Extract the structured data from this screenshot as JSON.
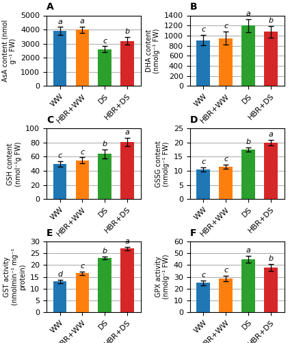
{
  "chart_data": [
    {
      "type": "bar",
      "title": "A",
      "ylabel": "AsA content (nmol g⁻¹ FW)",
      "categories": [
        "WW",
        "HBR+WW",
        "DS",
        "HBR+DS"
      ],
      "values": [
        3900,
        4000,
        2600,
        3200
      ],
      "errors": [
        280,
        220,
        220,
        280
      ],
      "annotations": [
        "a",
        "a",
        "c",
        "b"
      ],
      "colors": [
        "#1f77b4",
        "#ff7f0e",
        "#2ca02c",
        "#d62728"
      ],
      "ylim": [
        0,
        5000
      ],
      "yticks": [
        0,
        1000,
        2000,
        3000,
        4000,
        5000
      ],
      "grid": true
    },
    {
      "type": "bar",
      "title": "B",
      "ylabel": "DHA content (nmolg⁻¹ FW)",
      "categories": [
        "WW",
        "HBR+WW",
        "DS",
        "HBR+DS"
      ],
      "values": [
        910,
        950,
        1200,
        1075
      ],
      "errors": [
        100,
        130,
        130,
        120
      ],
      "annotations": [
        "c",
        "c",
        "a",
        "b"
      ],
      "colors": [
        "#1f77b4",
        "#ff7f0e",
        "#2ca02c",
        "#d62728"
      ],
      "ylim": [
        0,
        1400
      ],
      "yticks": [
        0,
        200,
        400,
        600,
        800,
        1000,
        1200,
        1400
      ],
      "grid": true
    },
    {
      "type": "bar",
      "title": "C",
      "ylabel": "GSH content (nmol⁻¹g FW)",
      "categories": [
        "WW",
        "HBR+WW",
        "DS",
        "HBR+DS"
      ],
      "values": [
        50,
        55,
        64,
        81
      ],
      "errors": [
        4,
        4,
        6,
        6
      ],
      "annotations": [
        "c",
        "c",
        "b",
        "a"
      ],
      "colors": [
        "#1f77b4",
        "#ff7f0e",
        "#2ca02c",
        "#d62728"
      ],
      "ylim": [
        0,
        100
      ],
      "yticks": [
        0,
        20,
        40,
        60,
        80,
        100
      ],
      "grid": true
    },
    {
      "type": "bar",
      "title": "D",
      "ylabel": "GSSG content (nmolg⁻¹ FW)",
      "categories": [
        "WW",
        "HBR+WW",
        "DS",
        "HBR+DS"
      ],
      "values": [
        10.5,
        11.5,
        17.5,
        20.0
      ],
      "errors": [
        0.8,
        0.8,
        0.8,
        1.0
      ],
      "annotations": [
        "c",
        "c",
        "b",
        "a"
      ],
      "colors": [
        "#1f77b4",
        "#ff7f0e",
        "#2ca02c",
        "#d62728"
      ],
      "ylim": [
        0,
        25
      ],
      "yticks": [
        0,
        5,
        10,
        15,
        20,
        25
      ],
      "grid": true
    },
    {
      "type": "bar",
      "title": "E",
      "ylabel": "GST activity (nmolmin⁻¹ mg⁻¹ protein)",
      "categories": [
        "WW",
        "HBR+WW",
        "DS",
        "HBR+DS"
      ],
      "values": [
        13.0,
        16.5,
        23.0,
        27.0
      ],
      "errors": [
        0.8,
        0.8,
        0.6,
        0.8
      ],
      "annotations": [
        "d",
        "c",
        "b",
        "a"
      ],
      "colors": [
        "#1f77b4",
        "#ff7f0e",
        "#2ca02c",
        "#d62728"
      ],
      "ylim": [
        0,
        30
      ],
      "yticks": [
        0,
        5,
        10,
        15,
        20,
        25,
        30
      ],
      "grid": true
    },
    {
      "type": "bar",
      "title": "F",
      "ylabel": "GPX activity (nmolg⁻¹ FW)",
      "categories": [
        "WW",
        "HBR+WW",
        "DS",
        "HBR+DS"
      ],
      "values": [
        25,
        28.5,
        45,
        38
      ],
      "errors": [
        2.0,
        2.5,
        3.0,
        3.0
      ],
      "annotations": [
        "c",
        "c",
        "a",
        "b"
      ],
      "colors": [
        "#1f77b4",
        "#ff7f0e",
        "#2ca02c",
        "#d62728"
      ],
      "ylim": [
        0,
        60
      ],
      "yticks": [
        0,
        10,
        20,
        30,
        40,
        50,
        60
      ],
      "grid": true
    }
  ]
}
